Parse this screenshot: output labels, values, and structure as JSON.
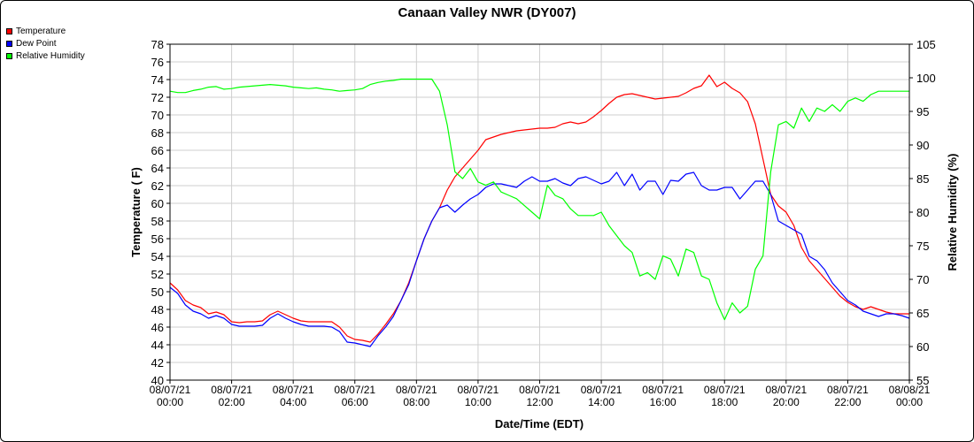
{
  "chart_data": {
    "type": "line",
    "title": "Canaan Valley NWR (DY007)",
    "xlabel": "Date/Time (EDT)",
    "ylabel": "Temperature ( F)",
    "y2label": "Relative Humidity (%)",
    "ylim": [
      40,
      78
    ],
    "y2lim": [
      55,
      105
    ],
    "xlim_hours": [
      0,
      24
    ],
    "grid": true,
    "legend_position": "top-left",
    "y_ticks": [
      40,
      42,
      44,
      46,
      48,
      50,
      52,
      54,
      56,
      58,
      60,
      62,
      64,
      66,
      68,
      70,
      72,
      74,
      76,
      78
    ],
    "y2_ticks": [
      55,
      60,
      65,
      70,
      75,
      80,
      85,
      90,
      95,
      100,
      105
    ],
    "x_ticks": [
      {
        "date": "08/07/21",
        "time": "00:00"
      },
      {
        "date": "08/07/21",
        "time": "02:00"
      },
      {
        "date": "08/07/21",
        "time": "04:00"
      },
      {
        "date": "08/07/21",
        "time": "06:00"
      },
      {
        "date": "08/07/21",
        "time": "08:00"
      },
      {
        "date": "08/07/21",
        "time": "10:00"
      },
      {
        "date": "08/07/21",
        "time": "12:00"
      },
      {
        "date": "08/07/21",
        "time": "14:00"
      },
      {
        "date": "08/07/21",
        "time": "16:00"
      },
      {
        "date": "08/07/21",
        "time": "18:00"
      },
      {
        "date": "08/07/21",
        "time": "20:00"
      },
      {
        "date": "08/07/21",
        "time": "22:00"
      },
      {
        "date": "08/08/21",
        "time": "00:00"
      }
    ],
    "series": [
      {
        "name": "Temperature",
        "color": "#ff0000",
        "axis": "left",
        "x": [
          0,
          0.25,
          0.5,
          0.75,
          1,
          1.25,
          1.5,
          1.75,
          2,
          2.25,
          2.5,
          2.75,
          3,
          3.25,
          3.5,
          3.75,
          4,
          4.25,
          4.5,
          4.75,
          5,
          5.25,
          5.5,
          5.75,
          6,
          6.25,
          6.5,
          6.75,
          7,
          7.25,
          7.5,
          7.75,
          8,
          8.25,
          8.5,
          8.75,
          9,
          9.25,
          9.5,
          9.75,
          10,
          10.25,
          10.5,
          10.75,
          11,
          11.25,
          11.5,
          11.75,
          12,
          12.25,
          12.5,
          12.75,
          13,
          13.25,
          13.5,
          13.75,
          14,
          14.25,
          14.5,
          14.75,
          15,
          15.25,
          15.5,
          15.75,
          16,
          16.25,
          16.5,
          16.75,
          17,
          17.25,
          17.5,
          17.75,
          18,
          18.25,
          18.5,
          18.75,
          19,
          19.25,
          19.5,
          19.75,
          20,
          20.25,
          20.5,
          20.75,
          21,
          21.25,
          21.5,
          21.75,
          22,
          22.25,
          22.5,
          22.75,
          23,
          23.25,
          23.5,
          23.75,
          24
        ],
        "values": [
          51,
          50.2,
          49,
          48.5,
          48.2,
          47.5,
          47.7,
          47.4,
          46.6,
          46.5,
          46.6,
          46.6,
          46.7,
          47.4,
          47.8,
          47.4,
          47.0,
          46.7,
          46.6,
          46.6,
          46.6,
          46.6,
          46.0,
          45.0,
          44.6,
          44.5,
          44.3,
          45.2,
          46.3,
          47.5,
          49.0,
          51.0,
          53.5,
          56.0,
          58.0,
          59.5,
          61.5,
          63.0,
          64.0,
          65.0,
          66.0,
          67.2,
          67.5,
          67.8,
          68.0,
          68.2,
          68.3,
          68.4,
          68.5,
          68.5,
          68.6,
          69.0,
          69.2,
          69.0,
          69.2,
          69.8,
          70.5,
          71.3,
          72.0,
          72.3,
          72.4,
          72.2,
          72.0,
          71.8,
          71.9,
          72.0,
          72.1,
          72.5,
          73.0,
          73.3,
          74.5,
          73.2,
          73.7,
          73.0,
          72.5,
          71.5,
          69.0,
          65.0,
          61.0,
          59.7,
          59.0,
          57.5,
          55.0,
          53.5,
          52.5,
          51.5,
          50.5,
          49.5,
          48.8,
          48.3,
          48.0,
          48.3,
          48.0,
          47.7,
          47.5,
          47.5,
          47.5
        ],
        "legend_label": "Temperature"
      },
      {
        "name": "Dew Point",
        "color": "#0000ff",
        "axis": "left",
        "x": [
          0,
          0.25,
          0.5,
          0.75,
          1,
          1.25,
          1.5,
          1.75,
          2,
          2.25,
          2.5,
          2.75,
          3,
          3.25,
          3.5,
          3.75,
          4,
          4.25,
          4.5,
          4.75,
          5,
          5.25,
          5.5,
          5.75,
          6,
          6.25,
          6.5,
          6.75,
          7,
          7.25,
          7.5,
          7.75,
          8,
          8.25,
          8.5,
          8.75,
          9,
          9.25,
          9.5,
          9.75,
          10,
          10.25,
          10.5,
          10.75,
          11,
          11.25,
          11.5,
          11.75,
          12,
          12.25,
          12.5,
          12.75,
          13,
          13.25,
          13.5,
          13.75,
          14,
          14.25,
          14.5,
          14.75,
          15,
          15.25,
          15.5,
          15.75,
          16,
          16.25,
          16.5,
          16.75,
          17,
          17.25,
          17.5,
          17.75,
          18,
          18.25,
          18.5,
          18.75,
          19,
          19.25,
          19.5,
          19.75,
          20,
          20.25,
          20.5,
          20.75,
          21,
          21.25,
          21.5,
          21.75,
          22,
          22.25,
          22.5,
          22.75,
          23,
          23.25,
          23.5,
          23.75,
          24
        ],
        "values": [
          50.5,
          49.8,
          48.5,
          47.8,
          47.5,
          47.0,
          47.3,
          47.0,
          46.3,
          46.1,
          46.1,
          46.1,
          46.2,
          47.0,
          47.5,
          47.0,
          46.6,
          46.3,
          46.1,
          46.1,
          46.1,
          46.0,
          45.5,
          44.3,
          44.2,
          44.0,
          43.8,
          45.0,
          46.0,
          47.2,
          49.0,
          50.8,
          53.5,
          56.0,
          58.0,
          59.5,
          59.8,
          59.0,
          59.8,
          60.5,
          61.0,
          61.8,
          62.2,
          62.2,
          62.0,
          61.8,
          62.5,
          63.0,
          62.5,
          62.5,
          62.8,
          62.3,
          62.0,
          62.8,
          63.0,
          62.6,
          62.2,
          62.5,
          63.5,
          62.0,
          63.3,
          61.5,
          62.5,
          62.5,
          61.0,
          62.6,
          62.5,
          63.3,
          63.5,
          62.0,
          61.5,
          61.5,
          61.8,
          61.8,
          60.5,
          61.5,
          62.5,
          62.5,
          61.0,
          58.0,
          57.5,
          57.0,
          56.5,
          54.0,
          53.5,
          52.5,
          51.0,
          50.0,
          49.0,
          48.5,
          47.8,
          47.5,
          47.2,
          47.5,
          47.5,
          47.3,
          47.0
        ],
        "legend_label": "Dew Point"
      },
      {
        "name": "Relative Humidity",
        "color": "#00ff00",
        "axis": "right",
        "x": [
          0,
          0.25,
          0.5,
          0.75,
          1,
          1.25,
          1.5,
          1.75,
          2,
          2.25,
          2.5,
          2.75,
          3,
          3.25,
          3.5,
          3.75,
          4,
          4.25,
          4.5,
          4.75,
          5,
          5.25,
          5.5,
          5.75,
          6,
          6.25,
          6.5,
          6.75,
          7,
          7.25,
          7.5,
          7.75,
          8,
          8.25,
          8.5,
          8.75,
          9,
          9.25,
          9.5,
          9.75,
          10,
          10.25,
          10.5,
          10.75,
          11,
          11.25,
          11.5,
          11.75,
          12,
          12.25,
          12.5,
          12.75,
          13,
          13.25,
          13.5,
          13.75,
          14,
          14.25,
          14.5,
          14.75,
          15,
          15.25,
          15.5,
          15.75,
          16,
          16.25,
          16.5,
          16.75,
          17,
          17.25,
          17.5,
          17.75,
          18,
          18.25,
          18.5,
          18.75,
          19,
          19.25,
          19.5,
          19.75,
          20,
          20.25,
          20.5,
          20.75,
          21,
          21.25,
          21.5,
          21.75,
          22,
          22.25,
          22.5,
          22.75,
          23,
          23.25,
          23.5,
          23.75,
          24
        ],
        "values": [
          98,
          97.8,
          97.8,
          98.1,
          98.3,
          98.6,
          98.7,
          98.3,
          98.4,
          98.6,
          98.7,
          98.8,
          98.9,
          99.0,
          98.9,
          98.8,
          98.6,
          98.5,
          98.4,
          98.5,
          98.3,
          98.2,
          98.0,
          98.1,
          98.2,
          98.4,
          99.0,
          99.3,
          99.5,
          99.6,
          99.8,
          99.8,
          99.8,
          99.8,
          99.8,
          98.0,
          93.0,
          86.0,
          85.0,
          86.5,
          84.5,
          84.0,
          84.5,
          83.0,
          82.5,
          82.0,
          81.0,
          80.0,
          79.0,
          84.0,
          82.5,
          82.0,
          80.5,
          79.5,
          79.5,
          79.5,
          80.0,
          78.0,
          76.5,
          75.0,
          74.0,
          70.5,
          71.0,
          70.0,
          73.5,
          73.0,
          70.5,
          74.5,
          74.0,
          70.5,
          70.0,
          66.5,
          64.0,
          66.5,
          65.0,
          66.0,
          71.5,
          73.5,
          86.0,
          93.0,
          93.5,
          92.5,
          95.5,
          93.5,
          95.5,
          95.0,
          96.0,
          95.0,
          96.5,
          97.0,
          96.5,
          97.5,
          98.0,
          98.0,
          98.0,
          98.0,
          98.0
        ],
        "legend_label": "Relative Humidity"
      }
    ]
  }
}
